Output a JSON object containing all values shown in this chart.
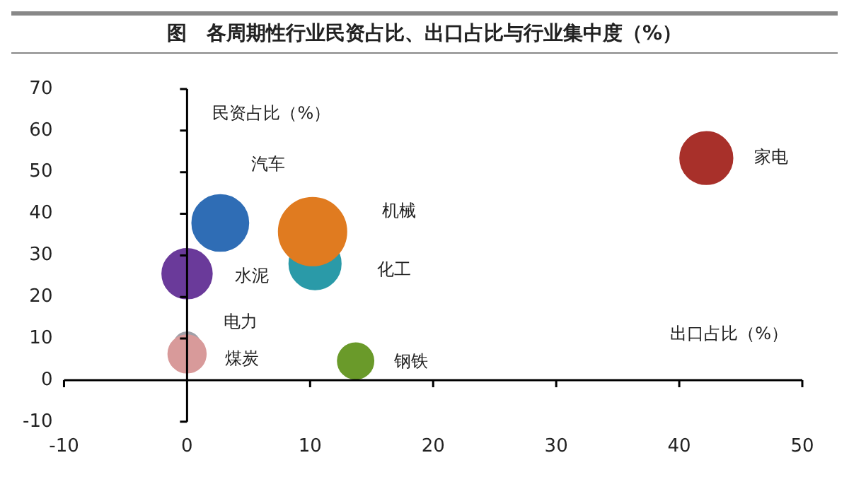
{
  "chart_data": {
    "type": "bubble",
    "title": "图　各周期性行业民资占比、出口占比与行业集中度（%）",
    "xlabel": "出口占比（%）",
    "ylabel": "民资占比（%）",
    "xlim": [
      -10,
      50
    ],
    "xticks": [
      -10,
      0,
      10,
      20,
      30,
      40,
      50
    ],
    "ylim": [
      -10,
      70
    ],
    "yticks": [
      -10,
      0,
      10,
      20,
      30,
      40,
      50,
      60,
      70
    ],
    "legend": false,
    "series": [
      {
        "name": "汽车",
        "color": "#2f6db5",
        "x": [
          2.7
        ],
        "values": [
          37.8
        ],
        "sizes": [
          0.69
        ]
      },
      {
        "name": "化工",
        "color": "#2a9aa8",
        "x": [
          10.4
        ],
        "values": [
          28
        ],
        "sizes": [
          0.58
        ]
      },
      {
        "name": "机械",
        "color": "#e07b20",
        "x": [
          10.2
        ],
        "values": [
          35.7
        ],
        "sizes": [
          1
        ]
      },
      {
        "name": "水泥",
        "color": "#6a3a9a",
        "x": [
          0
        ],
        "values": [
          25.6
        ],
        "sizes": [
          0.54
        ]
      },
      {
        "name": "电力",
        "color": "#a0a0a8",
        "x": [
          0
        ],
        "values": [
          8.4
        ],
        "sizes": [
          0.15
        ]
      },
      {
        "name": "煤炭",
        "color": "#d89a9a",
        "x": [
          0
        ],
        "values": [
          6.3
        ],
        "sizes": [
          0.31
        ]
      },
      {
        "name": "钢铁",
        "color": "#6a9a2a",
        "x": [
          13.7
        ],
        "values": [
          4.6
        ],
        "sizes": [
          0.28
        ]
      },
      {
        "name": "家电",
        "color": "#a8302a",
        "x": [
          42.2
        ],
        "values": [
          53.4
        ],
        "sizes": [
          0.6
        ]
      }
    ]
  }
}
